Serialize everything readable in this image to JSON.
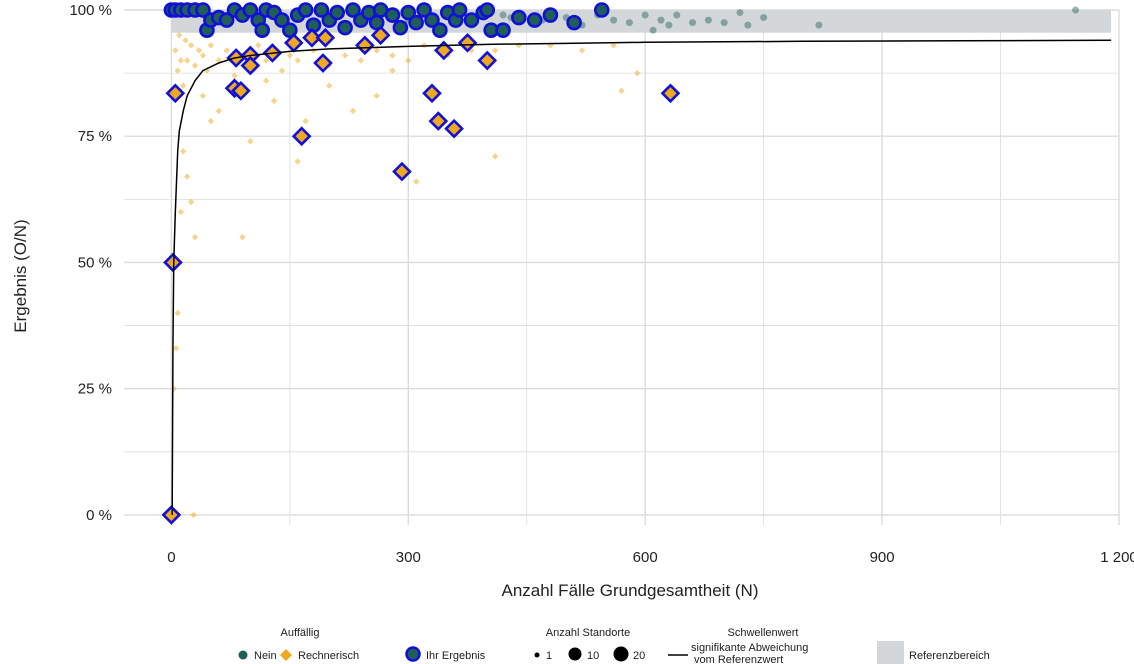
{
  "chart_data": {
    "type": "scatter",
    "xlabel": "Anzahl Fälle Grundgesamtheit (N)",
    "ylabel": "Ergebnis (O/N)",
    "xlim": [
      -60,
      1200
    ],
    "ylim": [
      -0.02,
      1.0
    ],
    "xticks": [
      0,
      300,
      600,
      900,
      1200
    ],
    "xtick_labels": [
      "0",
      "300",
      "600",
      "900",
      "1 200"
    ],
    "yticks": [
      0,
      0.25,
      0.5,
      0.75,
      1.0
    ],
    "ytick_labels": [
      "0 %",
      "25 %",
      "50 %",
      "75 %",
      "100 %"
    ],
    "grid": true,
    "reference_range": [
      0.955,
      1.0
    ],
    "colors": {
      "nein": "#1f5f57",
      "rechnerisch": "#f0a81e",
      "ihr_ergebnis_outline": "#1010d8",
      "referenz": "#d3d7da",
      "threshold": "#000000",
      "grid": "#dcdcdc"
    },
    "series": [
      {
        "name": "Nein",
        "marker": "circle",
        "points": [
          [
            420,
            0.99
          ],
          [
            470,
            0.98
          ],
          [
            500,
            0.985
          ],
          [
            520,
            0.97
          ],
          [
            540,
            0.99
          ],
          [
            560,
            0.98
          ],
          [
            580,
            0.975
          ],
          [
            600,
            0.99
          ],
          [
            610,
            0.96
          ],
          [
            620,
            0.98
          ],
          [
            630,
            0.97
          ],
          [
            640,
            0.99
          ],
          [
            660,
            0.975
          ],
          [
            680,
            0.98
          ],
          [
            700,
            0.975
          ],
          [
            720,
            0.995
          ],
          [
            730,
            0.97
          ],
          [
            750,
            0.985
          ],
          [
            820,
            0.97
          ],
          [
            1145,
            1.0
          ],
          [
            380,
            0.97
          ],
          [
            430,
            0.985
          ],
          [
            460,
            0.975
          ],
          [
            350,
            0.99
          ],
          [
            300,
            0.98
          ]
        ]
      },
      {
        "name": "Rechnerisch",
        "marker": "diamond",
        "points": [
          [
            5,
            0.92
          ],
          [
            8,
            0.88
          ],
          [
            10,
            0.95
          ],
          [
            12,
            0.9
          ],
          [
            15,
            0.85
          ],
          [
            18,
            0.94
          ],
          [
            20,
            0.9
          ],
          [
            25,
            0.93
          ],
          [
            30,
            0.89
          ],
          [
            35,
            0.92
          ],
          [
            40,
            0.91
          ],
          [
            45,
            0.88
          ],
          [
            50,
            0.93
          ],
          [
            60,
            0.9
          ],
          [
            70,
            0.92
          ],
          [
            80,
            0.87
          ],
          [
            90,
            0.91
          ],
          [
            100,
            0.89
          ],
          [
            110,
            0.93
          ],
          [
            120,
            0.9
          ],
          [
            130,
            0.92
          ],
          [
            140,
            0.88
          ],
          [
            150,
            0.91
          ],
          [
            160,
            0.9
          ],
          [
            180,
            0.92
          ],
          [
            200,
            0.89
          ],
          [
            220,
            0.91
          ],
          [
            240,
            0.9
          ],
          [
            260,
            0.92
          ],
          [
            280,
            0.91
          ],
          [
            300,
            0.9
          ],
          [
            320,
            0.93
          ],
          [
            350,
            0.91
          ],
          [
            380,
            0.92
          ],
          [
            410,
            0.92
          ],
          [
            440,
            0.93
          ],
          [
            480,
            0.93
          ],
          [
            520,
            0.92
          ],
          [
            560,
            0.93
          ],
          [
            590,
            0.875
          ],
          [
            30,
            0.55
          ],
          [
            90,
            0.55
          ],
          [
            8,
            0.4
          ],
          [
            6,
            0.33
          ],
          [
            25,
            0.62
          ],
          [
            15,
            0.72
          ],
          [
            50,
            0.78
          ],
          [
            100,
            0.74
          ],
          [
            160,
            0.7
          ],
          [
            310,
            0.66
          ],
          [
            410,
            0.71
          ],
          [
            170,
            0.78
          ],
          [
            230,
            0.8
          ],
          [
            260,
            0.83
          ],
          [
            40,
            0.83
          ],
          [
            120,
            0.86
          ],
          [
            200,
            0.85
          ],
          [
            280,
            0.88
          ],
          [
            570,
            0.84
          ],
          [
            28,
            0.0
          ],
          [
            12,
            0.6
          ],
          [
            20,
            0.67
          ],
          [
            3,
            0.25
          ],
          [
            4,
            0.5
          ],
          [
            60,
            0.8
          ],
          [
            130,
            0.82
          ]
        ]
      },
      {
        "name": "Ihr Ergebnis",
        "marker": "circle-outline",
        "points": [
          [
            0,
            1.0
          ],
          [
            5,
            1.0
          ],
          [
            12,
            1.0
          ],
          [
            20,
            1.0
          ],
          [
            30,
            1.0
          ],
          [
            40,
            1.0
          ],
          [
            45,
            0.96
          ],
          [
            50,
            0.98
          ],
          [
            60,
            0.985
          ],
          [
            70,
            0.98
          ],
          [
            80,
            1.0
          ],
          [
            90,
            0.99
          ],
          [
            100,
            1.0
          ],
          [
            110,
            0.98
          ],
          [
            115,
            0.96
          ],
          [
            120,
            1.0
          ],
          [
            130,
            0.995
          ],
          [
            140,
            0.98
          ],
          [
            150,
            0.96
          ],
          [
            160,
            0.99
          ],
          [
            170,
            1.0
          ],
          [
            180,
            0.97
          ],
          [
            190,
            1.0
          ],
          [
            200,
            0.98
          ],
          [
            210,
            0.995
          ],
          [
            220,
            0.965
          ],
          [
            230,
            1.0
          ],
          [
            240,
            0.98
          ],
          [
            250,
            0.995
          ],
          [
            260,
            0.975
          ],
          [
            265,
            1.0
          ],
          [
            280,
            0.99
          ],
          [
            290,
            0.965
          ],
          [
            300,
            0.995
          ],
          [
            310,
            0.975
          ],
          [
            320,
            1.0
          ],
          [
            330,
            0.98
          ],
          [
            340,
            0.96
          ],
          [
            350,
            0.995
          ],
          [
            360,
            0.98
          ],
          [
            365,
            1.0
          ],
          [
            380,
            0.98
          ],
          [
            395,
            0.995
          ],
          [
            400,
            1.0
          ],
          [
            405,
            0.96
          ],
          [
            420,
            0.96
          ],
          [
            440,
            0.985
          ],
          [
            460,
            0.98
          ],
          [
            480,
            0.99
          ],
          [
            510,
            0.975
          ],
          [
            545,
            1.0
          ]
        ]
      },
      {
        "name": "Ihr Ergebnis Rechnerisch",
        "marker": "diamond-outline",
        "points": [
          [
            0,
            0.0
          ],
          [
            2,
            0.5
          ],
          [
            5,
            0.835
          ],
          [
            80,
            0.845
          ],
          [
            88,
            0.84
          ],
          [
            82,
            0.905
          ],
          [
            100,
            0.91
          ],
          [
            100,
            0.89
          ],
          [
            128,
            0.915
          ],
          [
            165,
            0.75
          ],
          [
            155,
            0.935
          ],
          [
            178,
            0.945
          ],
          [
            192,
            0.895
          ],
          [
            195,
            0.945
          ],
          [
            245,
            0.93
          ],
          [
            265,
            0.95
          ],
          [
            292,
            0.68
          ],
          [
            330,
            0.835
          ],
          [
            338,
            0.78
          ],
          [
            345,
            0.92
          ],
          [
            358,
            0.765
          ],
          [
            375,
            0.935
          ],
          [
            400,
            0.9
          ],
          [
            632,
            0.835
          ]
        ]
      }
    ],
    "threshold_curve": [
      [
        1,
        0.0
      ],
      [
        2,
        0.34
      ],
      [
        3,
        0.5
      ],
      [
        5,
        0.6
      ],
      [
        8,
        0.72
      ],
      [
        10,
        0.76
      ],
      [
        15,
        0.8
      ],
      [
        20,
        0.83
      ],
      [
        30,
        0.86
      ],
      [
        40,
        0.88
      ],
      [
        60,
        0.895
      ],
      [
        80,
        0.905
      ],
      [
        100,
        0.91
      ],
      [
        150,
        0.918
      ],
      [
        200,
        0.923
      ],
      [
        300,
        0.928
      ],
      [
        400,
        0.932
      ],
      [
        500,
        0.934
      ],
      [
        600,
        0.936
      ],
      [
        800,
        0.938
      ],
      [
        1000,
        0.939
      ],
      [
        1190,
        0.94
      ]
    ],
    "legend": {
      "auffaellig_title": "Auffällig",
      "nein_label": "Nein",
      "rechnerisch_label": "Rechnerisch",
      "ihr_ergebnis_label": "Ihr Ergebnis",
      "standorte_title": "Anzahl Standorte",
      "size_1": "1",
      "size_10": "10",
      "size_20": "20",
      "schwellenwert_title": "Schwellenwert",
      "signifikant_line1": "signifikante Abweichung",
      "signifikant_line2": "vom Referenzwert",
      "referenzbereich_label": "Referenzbereich"
    }
  }
}
